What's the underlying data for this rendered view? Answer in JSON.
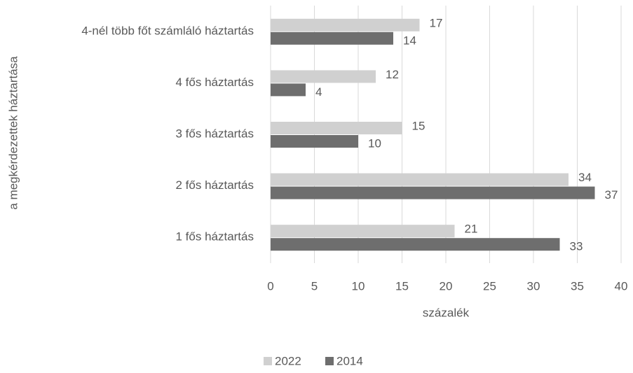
{
  "chart_data": {
    "type": "hbar",
    "categories": [
      "4-nél több főt számláló háztartás",
      "4 fős háztartás",
      "3 fős háztartás",
      "2 fős háztartás",
      "1 fős háztartás"
    ],
    "series": [
      {
        "name": "2022",
        "color": "#d0d0d0",
        "values": [
          17,
          12,
          15,
          34,
          21
        ]
      },
      {
        "name": "2014",
        "color": "#6e6e6e",
        "values": [
          14,
          4,
          10,
          37,
          33
        ]
      }
    ],
    "xlim": [
      0,
      40
    ],
    "xticks": [
      0,
      5,
      10,
      15,
      20,
      25,
      30,
      35,
      40
    ],
    "xlabel": "százalék",
    "ylabel": "a megkérdezettek háztartása",
    "grid": true,
    "legend": "bottom"
  }
}
